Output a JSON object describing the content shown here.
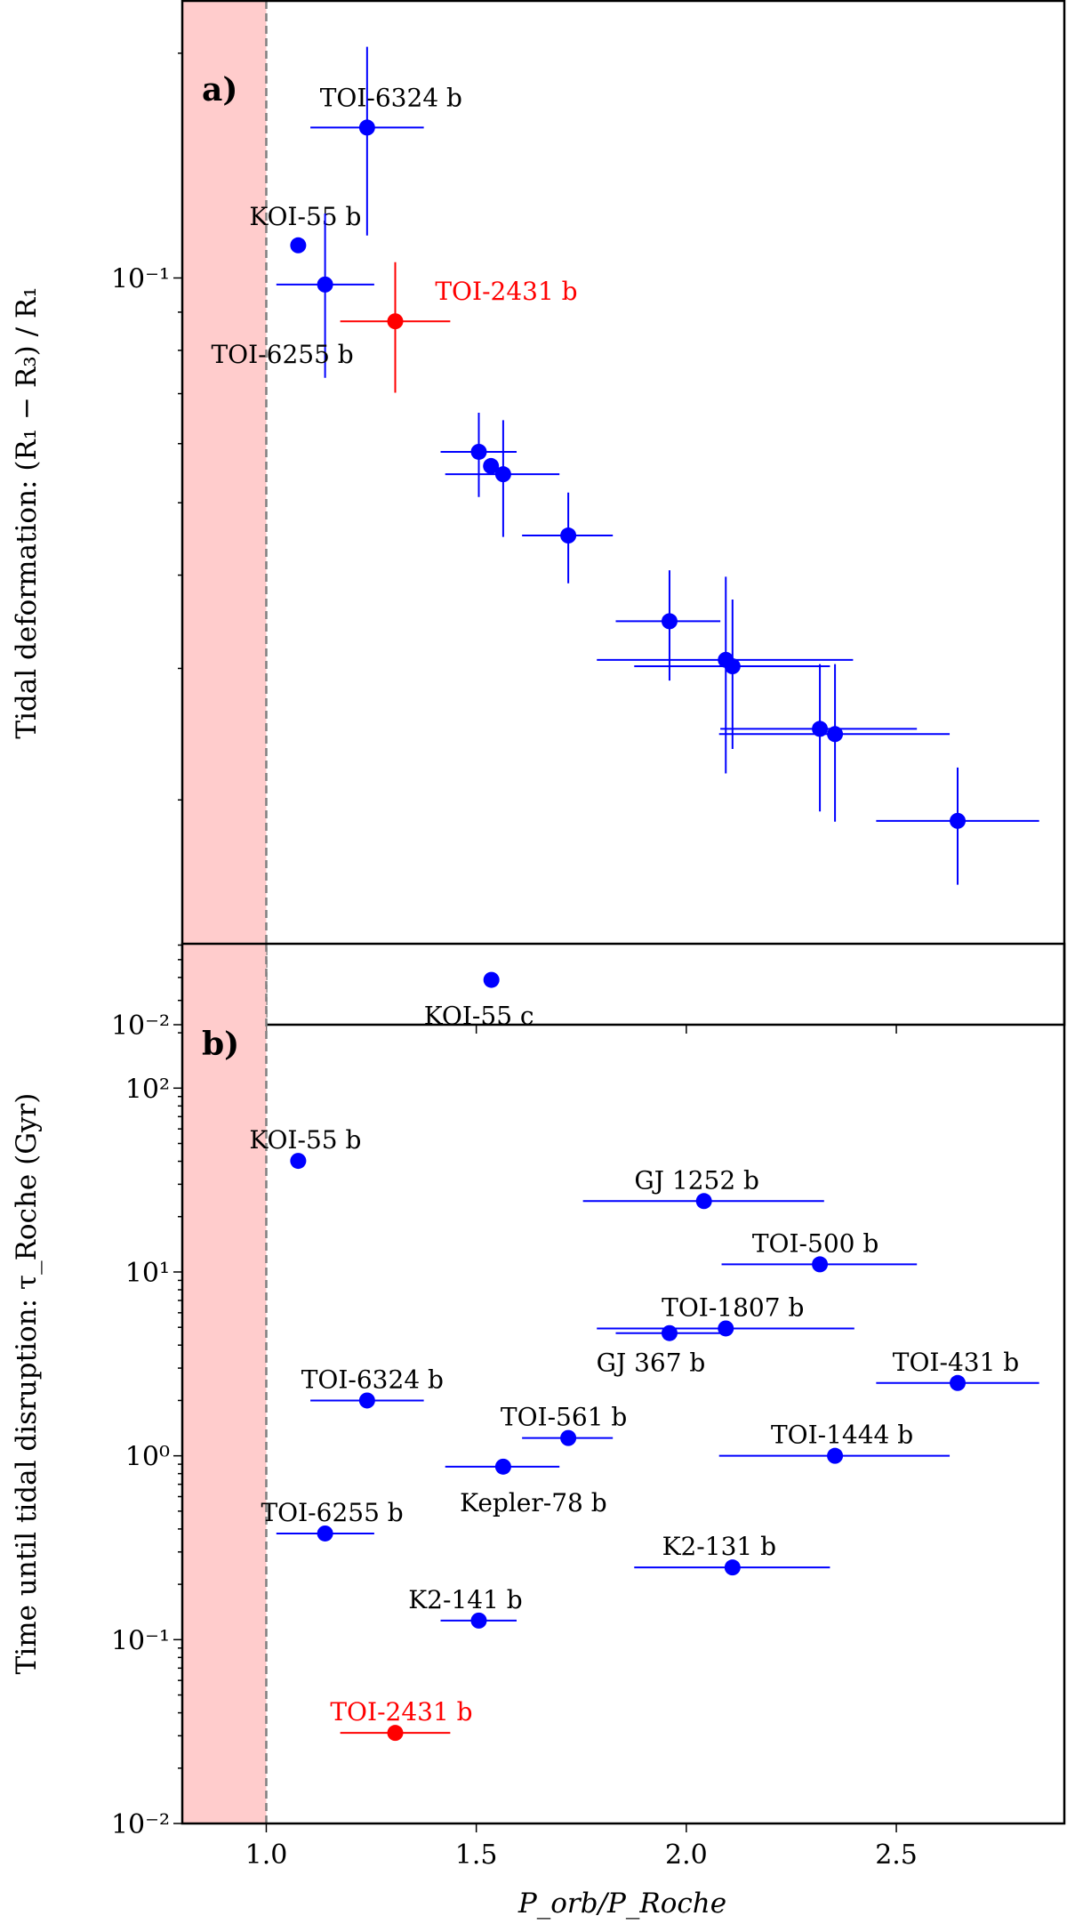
{
  "colors": {
    "points": "#0000ff",
    "highlight": "#ff0000",
    "roche_region": "#ffcccc",
    "roche_line": "#808080"
  },
  "chart_data": [
    {
      "type": "scatter",
      "panel_label": "a)",
      "ylabel": "Tidal deformation: (R₁ − R₃) / R₁",
      "xlabel": "",
      "xlim": [
        0.8,
        2.9
      ],
      "ylim": [
        0.01,
        0.235
      ],
      "yscale": "log",
      "yticks": [
        {
          "value": 0.1,
          "label": "10⁻¹"
        },
        {
          "value": 0.01,
          "label": "10⁻²"
        }
      ],
      "shaded_region_x": [
        0.8,
        1.0
      ],
      "vline_x": 1.0,
      "grid": false,
      "points": [
        {
          "label": "TOI-6324 b",
          "x": 1.24,
          "y": 0.159,
          "xerr": [
            1.105,
            1.375
          ],
          "yerr": [
            0.114,
            0.204
          ],
          "color": "blue"
        },
        {
          "label": "KOI-55 b",
          "x": 1.076,
          "y": 0.1106,
          "color": "blue"
        },
        {
          "label": "TOI-6255 b",
          "x": 1.14,
          "y": 0.098,
          "xerr": [
            1.024,
            1.257
          ],
          "yerr": [
            0.0735,
            0.122
          ],
          "color": "blue"
        },
        {
          "label": "TOI-2431 b",
          "x": 1.307,
          "y": 0.0875,
          "xerr": [
            1.176,
            1.438
          ],
          "yerr": [
            0.0702,
            0.105
          ],
          "color": "red"
        },
        {
          "label": "",
          "x": 1.506,
          "y": 0.0585,
          "xerr": [
            1.415,
            1.596
          ],
          "yerr": [
            0.0509,
            0.066
          ],
          "color": "blue"
        },
        {
          "label": "",
          "x": 1.535,
          "y": 0.056,
          "color": "blue"
        },
        {
          "label": "",
          "x": 1.564,
          "y": 0.0546,
          "xerr": [
            1.426,
            1.698
          ],
          "yerr": [
            0.045,
            0.0645
          ],
          "color": "blue"
        },
        {
          "label": "",
          "x": 1.719,
          "y": 0.0452,
          "xerr": [
            1.609,
            1.825
          ],
          "yerr": [
            0.039,
            0.0516
          ],
          "color": "blue"
        },
        {
          "label": "",
          "x": 1.96,
          "y": 0.0347,
          "xerr": [
            1.832,
            2.081
          ],
          "yerr": [
            0.0289,
            0.0406
          ],
          "color": "blue"
        },
        {
          "label": "",
          "x": 2.094,
          "y": 0.0308,
          "xerr": [
            1.787,
            2.397
          ],
          "yerr": [
            0.0217,
            0.0398
          ],
          "color": "blue"
        },
        {
          "label": "",
          "x": 2.11,
          "y": 0.0302,
          "xerr": [
            1.876,
            2.342
          ],
          "yerr": [
            0.0234,
            0.0371
          ],
          "color": "blue"
        },
        {
          "label": "",
          "x": 2.318,
          "y": 0.0249,
          "xerr": [
            2.081,
            2.549
          ],
          "yerr": [
            0.0193,
            0.0304
          ],
          "color": "blue"
        },
        {
          "label": "",
          "x": 2.354,
          "y": 0.0245,
          "xerr": [
            2.078,
            2.627
          ],
          "yerr": [
            0.0187,
            0.0304
          ],
          "color": "blue"
        },
        {
          "label": "",
          "x": 2.646,
          "y": 0.01875,
          "xerr": [
            2.452,
            2.84
          ],
          "yerr": [
            0.0154,
            0.0221
          ],
          "color": "blue"
        }
      ]
    },
    {
      "type": "scatter",
      "panel_label": "b)",
      "ylabel": "Time until tidal disruption: τ_Roche (Gyr)",
      "xlabel": "P_orb/P_Roche",
      "xlim": [
        0.8,
        2.9
      ],
      "ylim": [
        0.01,
        610
      ],
      "yscale": "log",
      "xticks": [
        "1.0",
        "1.5",
        "2.0",
        "2.5"
      ],
      "yticks": [
        {
          "value": 100,
          "label": "10²"
        },
        {
          "value": 10,
          "label": "10¹"
        },
        {
          "value": 1,
          "label": "10⁰"
        },
        {
          "value": 0.1,
          "label": "10⁻¹"
        },
        {
          "value": 0.01,
          "label": "10⁻²"
        }
      ],
      "shaded_region_x": [
        0.8,
        1.0
      ],
      "vline_x": 1.0,
      "grid": false,
      "points": [
        {
          "label": "KOI-55 c",
          "x": 1.536,
          "y": 388,
          "color": "blue"
        },
        {
          "label": "KOI-55 b",
          "x": 1.076,
          "y": 40.2,
          "color": "blue"
        },
        {
          "label": "GJ 1252 b",
          "x": 2.042,
          "y": 24.3,
          "xerr": [
            1.754,
            2.328
          ],
          "color": "blue"
        },
        {
          "label": "TOI-500 b",
          "x": 2.318,
          "y": 11.0,
          "xerr": [
            2.084,
            2.549
          ],
          "color": "blue"
        },
        {
          "label": "TOI-1807 b",
          "x": 2.094,
          "y": 4.93,
          "xerr": [
            1.787,
            2.4
          ],
          "color": "blue"
        },
        {
          "label": "GJ 367 b",
          "x": 1.96,
          "y": 4.65,
          "xerr": [
            1.832,
            2.081
          ],
          "color": "blue"
        },
        {
          "label": "TOI-431 b",
          "x": 2.646,
          "y": 2.49,
          "xerr": [
            2.452,
            2.84
          ],
          "color": "blue"
        },
        {
          "label": "TOI-6324 b",
          "x": 1.24,
          "y": 2.0,
          "xerr": [
            1.105,
            1.375
          ],
          "color": "blue"
        },
        {
          "label": "TOI-561 b",
          "x": 1.719,
          "y": 1.25,
          "xerr": [
            1.609,
            1.825
          ],
          "color": "blue"
        },
        {
          "label": "TOI-1444 b",
          "x": 2.354,
          "y": 1.0,
          "xerr": [
            2.078,
            2.627
          ],
          "color": "blue"
        },
        {
          "label": "Kepler-78 b",
          "x": 1.564,
          "y": 0.873,
          "xerr": [
            1.426,
            1.698
          ],
          "color": "blue"
        },
        {
          "label": "TOI-6255 b",
          "x": 1.14,
          "y": 0.378,
          "xerr": [
            1.024,
            1.257
          ],
          "color": "blue"
        },
        {
          "label": "K2-131 b",
          "x": 2.11,
          "y": 0.247,
          "xerr": [
            1.876,
            2.342
          ],
          "color": "blue"
        },
        {
          "label": "K2-141 b",
          "x": 1.506,
          "y": 0.127,
          "xerr": [
            1.415,
            1.596
          ],
          "color": "blue"
        },
        {
          "label": "TOI-2431 b",
          "x": 1.307,
          "y": 0.0311,
          "xerr": [
            1.176,
            1.438
          ],
          "color": "red"
        }
      ]
    }
  ]
}
